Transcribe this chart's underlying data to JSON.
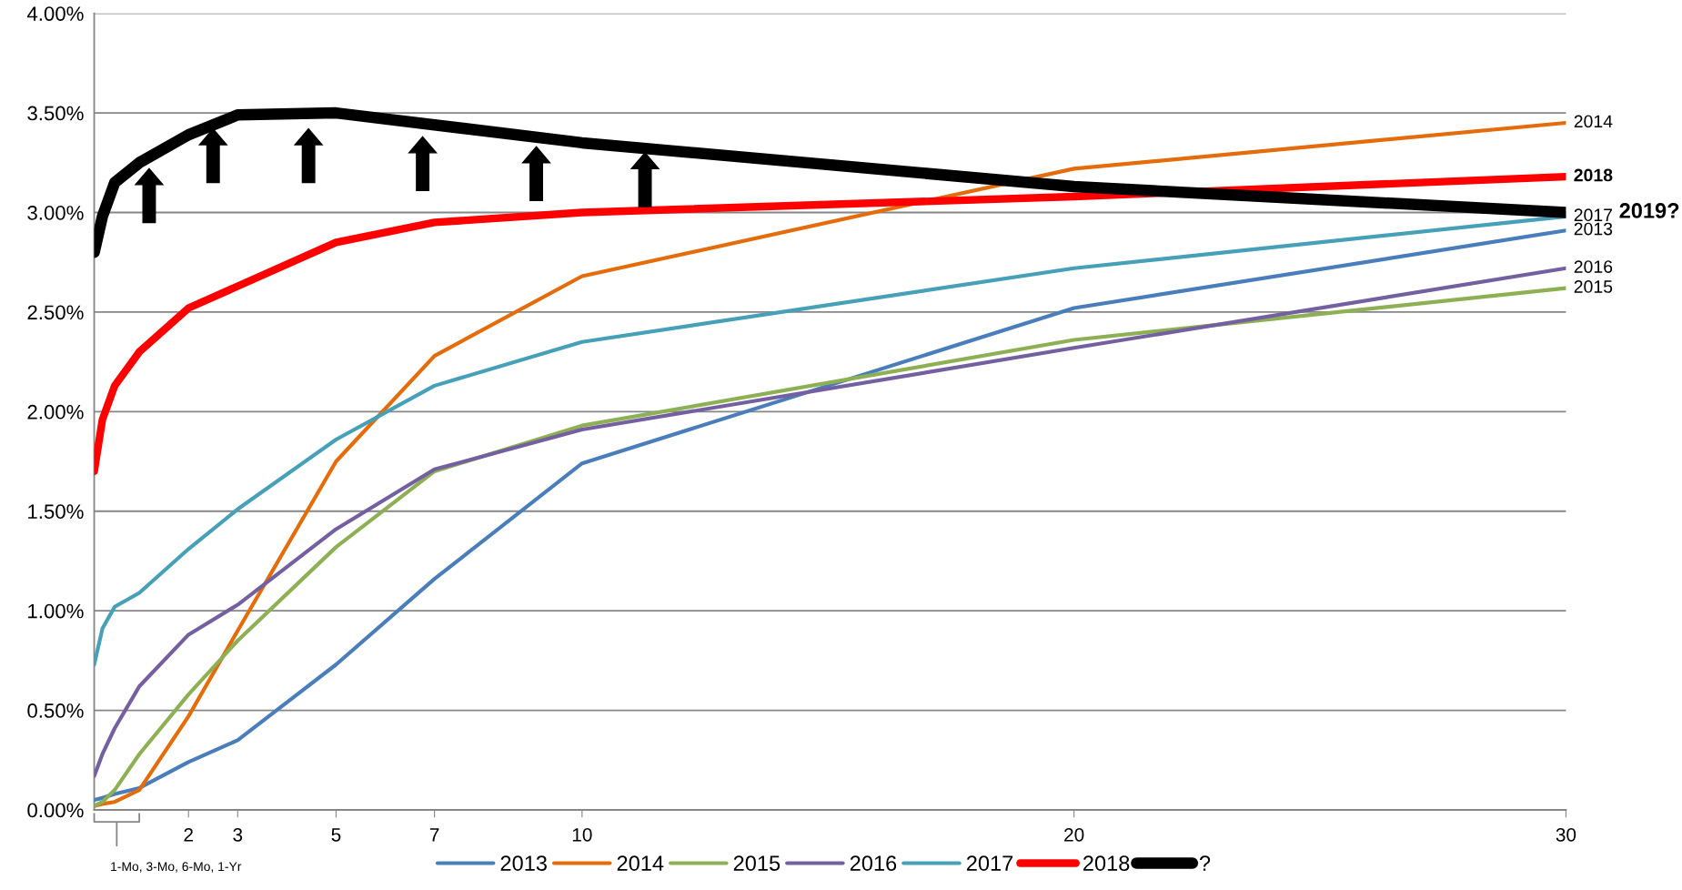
{
  "chart_data": {
    "type": "line",
    "x": [
      0.083,
      0.25,
      0.5,
      1,
      2,
      3,
      5,
      7,
      10,
      20,
      30
    ],
    "xlim": [
      0.083,
      30
    ],
    "xticks": [
      2,
      3,
      5,
      7,
      10,
      20,
      30
    ],
    "ylim": [
      0,
      4
    ],
    "yticks": [
      {
        "value": 0,
        "label": "0.00%"
      },
      {
        "value": 0.5,
        "label": "0.50%"
      },
      {
        "value": 1,
        "label": "1.00%"
      },
      {
        "value": 1.5,
        "label": "1.50%"
      },
      {
        "value": 2,
        "label": "2.00%"
      },
      {
        "value": 2.5,
        "label": "2.50%"
      },
      {
        "value": 3,
        "label": "3.00%"
      },
      {
        "value": 3.5,
        "label": "3.50%"
      },
      {
        "value": 4,
        "label": "4.00%"
      }
    ],
    "grid": "y",
    "legend": "bottom",
    "marker": "none",
    "line_style": "solid",
    "series": [
      {
        "name": "2013",
        "color": "#4a7ebb",
        "values": [
          0.05,
          0.06,
          0.08,
          0.11,
          0.24,
          0.35,
          0.73,
          1.16,
          1.74,
          2.52,
          2.91
        ]
      },
      {
        "name": "2014",
        "color": "#e46c0a",
        "values": [
          0.02,
          0.03,
          0.04,
          0.1,
          0.47,
          0.9,
          1.75,
          2.28,
          2.68,
          3.22,
          3.45
        ]
      },
      {
        "name": "2015",
        "color": "#8eb054",
        "values": [
          0.02,
          0.04,
          0.1,
          0.28,
          0.58,
          0.85,
          1.32,
          1.7,
          1.93,
          2.36,
          2.62
        ]
      },
      {
        "name": "2016",
        "color": "#7460a0",
        "values": [
          0.17,
          0.28,
          0.41,
          0.62,
          0.88,
          1.03,
          1.41,
          1.71,
          1.91,
          2.32,
          2.72
        ]
      },
      {
        "name": "2017",
        "color": "#46a0b8",
        "values": [
          0.73,
          0.91,
          1.02,
          1.09,
          1.31,
          1.51,
          1.86,
          2.13,
          2.35,
          2.72,
          2.98
        ]
      },
      {
        "name": "2018",
        "color": "#ff0000",
        "values": [
          1.7,
          1.96,
          2.13,
          2.3,
          2.52,
          2.63,
          2.85,
          2.95,
          3.0,
          3.08,
          3.18
        ]
      },
      {
        "name": "?",
        "color": "#000000",
        "values": [
          2.8,
          2.98,
          3.15,
          3.25,
          3.39,
          3.49,
          3.5,
          3.44,
          3.35,
          3.13,
          3.0
        ]
      }
    ],
    "annotations": [
      "2019?",
      "1-Mo, 3-Mo, 6-Mo, 1-Yr"
    ]
  }
}
